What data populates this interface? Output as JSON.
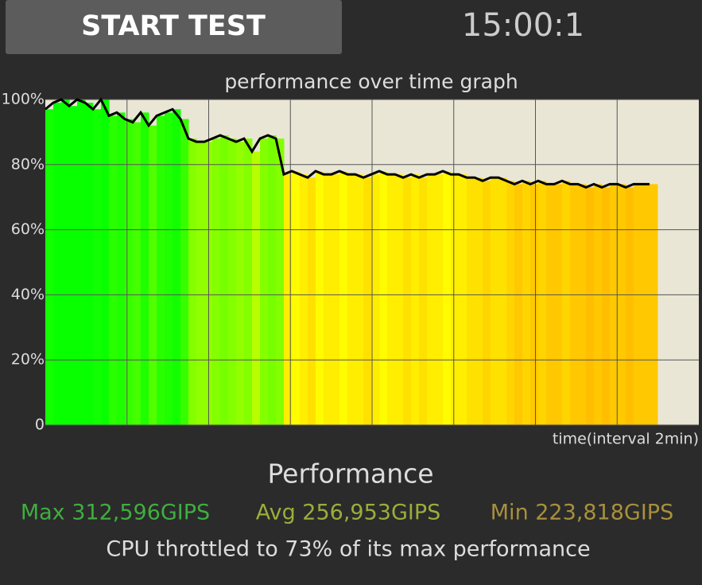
{
  "header": {
    "button": "START TEST",
    "timer": "15:00:1"
  },
  "chart_data": {
    "type": "area",
    "title": "performance over time graph",
    "x_label": "time(interval 2min)",
    "ylim": [
      0,
      100
    ],
    "yticks": [
      {
        "value": 0,
        "label": "0"
      },
      {
        "value": 20,
        "label": "20%"
      },
      {
        "value": 40,
        "label": "40%"
      },
      {
        "value": 60,
        "label": "60%"
      },
      {
        "value": 80,
        "label": "80%"
      },
      {
        "value": 100,
        "label": "100%"
      }
    ],
    "grid": true,
    "line_color": "#000000",
    "values": [
      97,
      99,
      100,
      98,
      100,
      99,
      97,
      100,
      95,
      96,
      94,
      93,
      96,
      92,
      95,
      96,
      97,
      94,
      88,
      87,
      87,
      88,
      89,
      88,
      87,
      88,
      84,
      88,
      89,
      88,
      77,
      78,
      77,
      76,
      78,
      77,
      77,
      78,
      77,
      77,
      76,
      77,
      78,
      77,
      77,
      76,
      77,
      76,
      77,
      77,
      78,
      77,
      77,
      76,
      76,
      75,
      76,
      76,
      75,
      74,
      75,
      74,
      75,
      74,
      74,
      75,
      74,
      74,
      73,
      74,
      73,
      74,
      74,
      73,
      74,
      74,
      74
    ]
  },
  "stats": {
    "heading": "Performance",
    "max": "Max 312,596GIPS",
    "avg": "Avg 256,953GIPS",
    "min": "Min 223,818GIPS",
    "summary": "CPU throttled to 73% of its max performance"
  }
}
